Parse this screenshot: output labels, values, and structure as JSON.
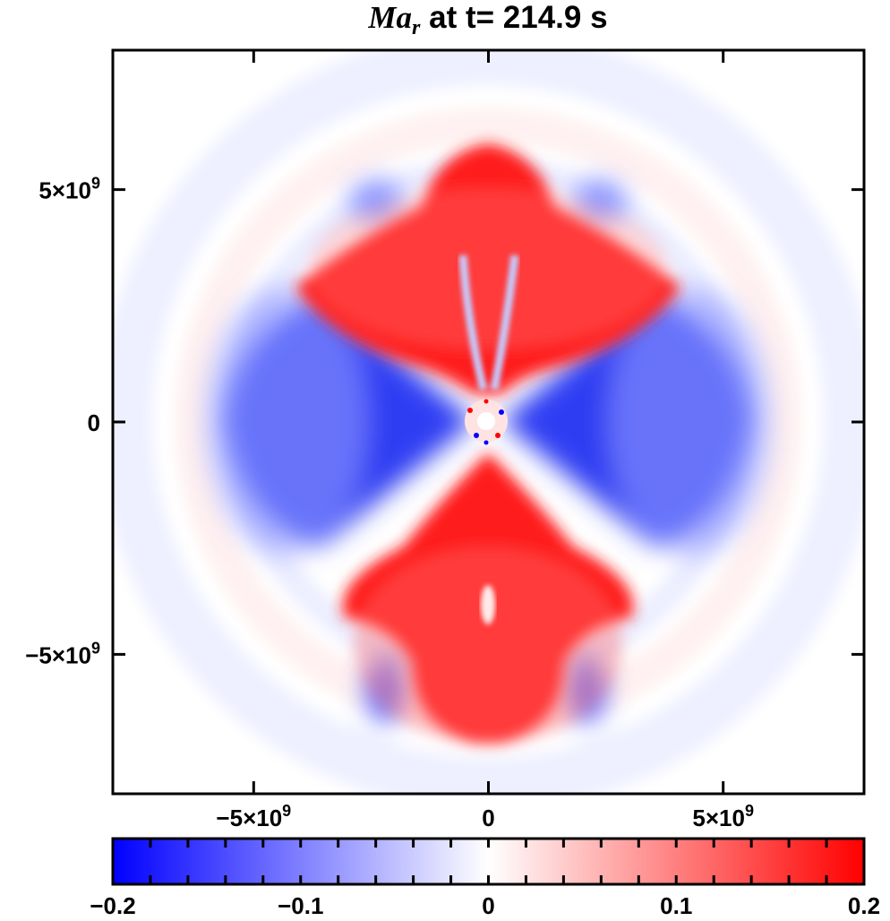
{
  "chart_data": {
    "type": "heatmap",
    "title": {
      "variable": "Ma",
      "variable_subscript": "r",
      "text": " at t= 214.9 s"
    },
    "xlabel": "",
    "ylabel": "",
    "xlim": [
      -8000000000,
      8000000000
    ],
    "ylim": [
      -8000000000,
      8000000000
    ],
    "x_ticks": [
      {
        "value": -5000000000,
        "label": "−5×10",
        "exp": "9"
      },
      {
        "value": 0,
        "label": "0",
        "exp": ""
      },
      {
        "value": 5000000000,
        "label": "5×10",
        "exp": "9"
      }
    ],
    "y_ticks": [
      {
        "value": 5000000000,
        "label": "5×10",
        "exp": "9"
      },
      {
        "value": 0,
        "label": "0",
        "exp": ""
      },
      {
        "value": -5000000000,
        "label": "−5×10",
        "exp": "9"
      }
    ],
    "colorbar": {
      "range": [
        -0.2,
        0.2
      ],
      "colormap": [
        "#0000ff",
        "#ffffff",
        "#ff0000"
      ],
      "ticks": [
        {
          "value": -0.2,
          "label": "−0.2"
        },
        {
          "value": -0.1,
          "label": "−0.1"
        },
        {
          "value": 0,
          "label": "0"
        },
        {
          "value": 0.1,
          "label": "0.1"
        },
        {
          "value": 0.2,
          "label": "0.2"
        }
      ],
      "minor_step": 0.02
    },
    "grid": false,
    "regions": [
      {
        "name": "north-red-lobe",
        "sign": "positive",
        "value": 0.2
      },
      {
        "name": "south-red-lobe",
        "sign": "positive",
        "value": 0.2
      },
      {
        "name": "west-blue-wing",
        "sign": "negative",
        "value": -0.17
      },
      {
        "name": "east-blue-wing",
        "sign": "negative",
        "value": -0.17
      },
      {
        "name": "center-turbulent-core",
        "sign": "mixed",
        "value": 0.2
      }
    ]
  }
}
